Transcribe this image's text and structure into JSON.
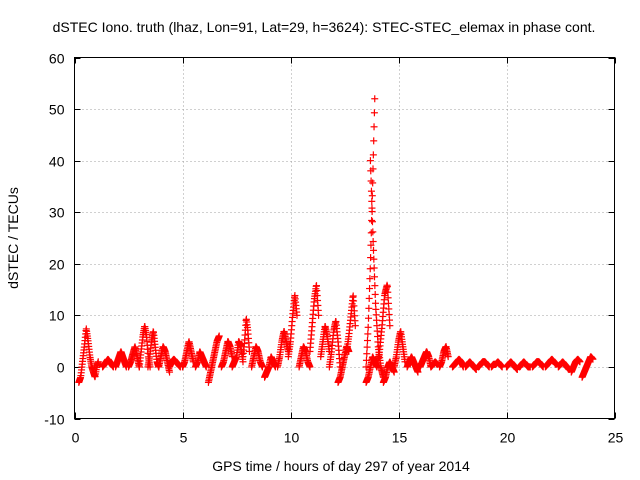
{
  "chart_data": {
    "type": "scatter",
    "title": "dSTEC Iono. truth (lhaz, Lon=91, Lat=29, h=3624): STEC-STEC_elemax in phase cont.",
    "xlabel": "GPS time / hours of day 297 of year 2014",
    "ylabel": "dSTEC  / TECUs",
    "xlim": [
      0,
      25
    ],
    "ylim": [
      -10,
      60
    ],
    "xticks": [
      0,
      5,
      10,
      15,
      20,
      25
    ],
    "yticks": [
      -10,
      0,
      10,
      20,
      30,
      40,
      50,
      60
    ],
    "xtick_labels": [
      "0",
      "5",
      "10",
      "15",
      "20",
      "25"
    ],
    "ytick_labels": [
      "-10",
      "0",
      "10",
      "20",
      "30",
      "40",
      "50",
      "60"
    ],
    "grid": true,
    "marker": "+",
    "series": [
      {
        "name": "dSTEC",
        "color": "#ff0000",
        "arcs": [
          {
            "t0": 0.2,
            "t1": 0.8,
            "ys": [
              -3,
              -2,
              1,
              4,
              7.5,
              5,
              2,
              0
            ]
          },
          {
            "t0": 0.8,
            "t1": 1.1,
            "ys": [
              0,
              -1,
              -2,
              0,
              1
            ]
          },
          {
            "t0": 1.3,
            "t1": 1.8,
            "ys": [
              0,
              0.5,
              1,
              1.5,
              1,
              0.5,
              0
            ]
          },
          {
            "t0": 1.9,
            "t1": 2.4,
            "ys": [
              0,
              1,
              2,
              3,
              2,
              1,
              0
            ]
          },
          {
            "t0": 2.5,
            "t1": 3.0,
            "ys": [
              0,
              1,
              2.5,
              4,
              2,
              0
            ]
          },
          {
            "t0": 3.0,
            "t1": 3.5,
            "ys": [
              0,
              3,
              6,
              8,
              6,
              2,
              0
            ]
          },
          {
            "t0": 3.4,
            "t1": 3.9,
            "ys": [
              0,
              2,
              5,
              7,
              4,
              1,
              0
            ]
          },
          {
            "t0": 3.9,
            "t1": 4.4,
            "ys": [
              0,
              2,
              4,
              3,
              1,
              -1
            ]
          },
          {
            "t0": 4.4,
            "t1": 4.9,
            "ys": [
              0,
              1,
              1.5,
              1,
              0.5,
              0
            ]
          },
          {
            "t0": 5.0,
            "t1": 5.5,
            "ys": [
              0,
              1,
              3,
              5,
              3,
              1
            ]
          },
          {
            "t0": 5.6,
            "t1": 6.1,
            "ys": [
              0,
              1,
              3,
              2,
              1,
              0
            ]
          },
          {
            "t0": 6.2,
            "t1": 6.7,
            "ys": [
              -3,
              -1,
              1,
              3,
              5,
              6
            ]
          },
          {
            "t0": 6.8,
            "t1": 7.3,
            "ys": [
              0,
              1,
              3,
              5,
              4,
              2
            ]
          },
          {
            "t0": 7.3,
            "t1": 7.8,
            "ys": [
              0,
              1,
              2,
              5,
              4,
              1
            ]
          },
          {
            "t0": 7.8,
            "t1": 8.1,
            "ys": [
              2,
              5,
              9.5,
              7,
              3
            ]
          },
          {
            "t0": 8.2,
            "t1": 8.7,
            "ys": [
              0,
              2,
              4,
              3,
              1,
              0
            ]
          },
          {
            "t0": 8.8,
            "t1": 9.3,
            "ys": [
              -2,
              -1,
              0,
              2,
              1,
              0
            ]
          },
          {
            "t0": 9.4,
            "t1": 9.9,
            "ys": [
              0,
              2,
              5,
              7,
              5,
              3
            ]
          },
          {
            "t0": 9.9,
            "t1": 10.3,
            "ys": [
              2,
              5,
              10,
              14,
              10
            ]
          },
          {
            "t0": 10.4,
            "t1": 10.9,
            "ys": [
              0,
              2,
              4,
              3,
              1,
              0
            ]
          },
          {
            "t0": 10.9,
            "t1": 11.3,
            "ys": [
              3,
              8,
              13,
              16,
              10
            ]
          },
          {
            "t0": 11.4,
            "t1": 11.8,
            "ys": [
              2,
              5,
              8,
              6,
              3
            ]
          },
          {
            "t0": 11.8,
            "t1": 12.3,
            "ys": [
              0,
              3,
              7,
              9,
              5,
              0
            ]
          },
          {
            "t0": 12.2,
            "t1": 12.7,
            "ys": [
              -3,
              -2,
              0,
              2,
              4,
              3
            ]
          },
          {
            "t0": 12.6,
            "t1": 13.0,
            "ys": [
              3,
              6,
              10,
              14,
              8
            ]
          },
          {
            "t0": 13.5,
            "t1": 13.9,
            "ys": [
              0,
              8,
              20,
              35,
              52
            ]
          },
          {
            "t0": 13.7,
            "t1": 14.3,
            "ys": [
              40,
              25,
              12,
              4,
              0,
              -2
            ]
          },
          {
            "t0": 13.5,
            "t1": 14.0,
            "ys": [
              -3,
              -2,
              0,
              2,
              1,
              0
            ]
          },
          {
            "t0": 14.0,
            "t1": 14.6,
            "ys": [
              0,
              3,
              8,
              14,
              16,
              8
            ]
          },
          {
            "t0": 14.3,
            "t1": 14.8,
            "ys": [
              -3,
              -2,
              0,
              1,
              0,
              -1
            ]
          },
          {
            "t0": 14.8,
            "t1": 15.3,
            "ys": [
              0,
              2,
              5,
              7,
              4,
              1
            ]
          },
          {
            "t0": 15.4,
            "t1": 15.9,
            "ys": [
              0,
              1,
              2,
              1,
              0,
              -1
            ]
          },
          {
            "t0": 16.0,
            "t1": 16.5,
            "ys": [
              0,
              1,
              2,
              3,
              2,
              0
            ]
          },
          {
            "t0": 16.5,
            "t1": 16.8,
            "ys": [
              0,
              0.5,
              1,
              0.5
            ]
          },
          {
            "t0": 16.9,
            "t1": 17.3,
            "ys": [
              0,
              1,
              3,
              4,
              2
            ]
          },
          {
            "t0": 17.5,
            "t1": 18.0,
            "ys": [
              0,
              0.5,
              1,
              1.5,
              1,
              0
            ]
          },
          {
            "t0": 18.1,
            "t1": 18.6,
            "ys": [
              0,
              0.5,
              1,
              0.5,
              0,
              -0.5
            ]
          },
          {
            "t0": 18.7,
            "t1": 19.2,
            "ys": [
              0,
              0.5,
              1,
              1,
              0.5,
              0
            ]
          },
          {
            "t0": 19.3,
            "t1": 19.8,
            "ys": [
              0,
              0.5,
              0.5,
              1,
              0.5,
              0
            ]
          },
          {
            "t0": 20.0,
            "t1": 20.5,
            "ys": [
              0,
              0.5,
              1,
              0.5,
              0,
              -0.5
            ]
          },
          {
            "t0": 20.6,
            "t1": 21.1,
            "ys": [
              0,
              0.5,
              1,
              0.5,
              0,
              0
            ]
          },
          {
            "t0": 21.2,
            "t1": 21.7,
            "ys": [
              0,
              0.5,
              1,
              1,
              0.5,
              0
            ]
          },
          {
            "t0": 21.8,
            "t1": 22.3,
            "ys": [
              0,
              0.5,
              1,
              1.5,
              1,
              0.5
            ]
          },
          {
            "t0": 22.4,
            "t1": 22.9,
            "ys": [
              0,
              0.5,
              1,
              0.5,
              0,
              -0.5
            ]
          },
          {
            "t0": 23.0,
            "t1": 23.4,
            "ys": [
              -1,
              0,
              1,
              1.5,
              1
            ]
          },
          {
            "t0": 23.5,
            "t1": 24.0,
            "ys": [
              -2,
              -1,
              0,
              1,
              2,
              1.5
            ]
          }
        ]
      }
    ]
  }
}
